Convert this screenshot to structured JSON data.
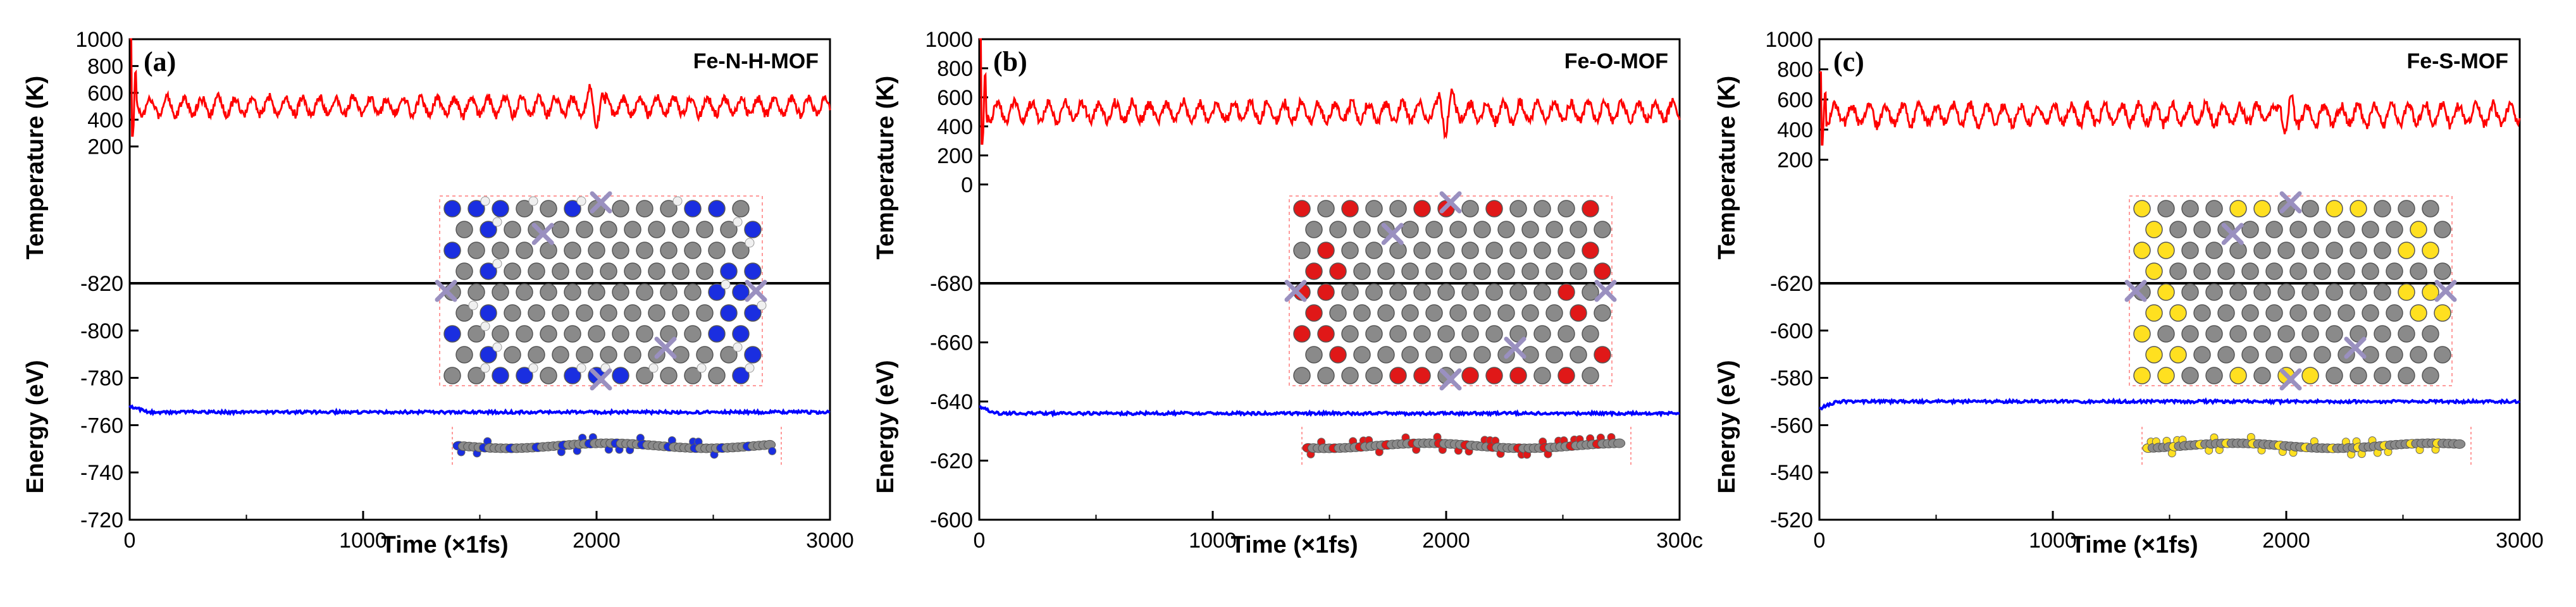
{
  "figure": {
    "x_label": "Time (×1fs)",
    "x_ticks": [
      "0",
      "1000",
      "2000",
      "3000"
    ],
    "x_ticks_last_clipped": [
      "0",
      "1000",
      "2000",
      "3000",
      "300с"
    ],
    "colors": {
      "temperature": "#ff0000",
      "energy": "#0000ff",
      "divider": "#000000",
      "carbon": "#8a8a8a",
      "iron": "#9a90c0",
      "nitrogen": "#1a2ee0",
      "hydrogen": "#f0f0f0",
      "oxygen": "#e01818",
      "sulfur": "#ffe020"
    }
  },
  "chart_data": [
    {
      "type": "line",
      "panel": "(a)",
      "material": "Fe-N-H-MOF",
      "xlabel": "Time (×1fs)",
      "xlim": [
        0,
        3000
      ],
      "x_ticks": [
        "0",
        "1000",
        "2000",
        "3000"
      ],
      "temperature": {
        "ylabel": "Temperature (K)",
        "ylim": [
          -820,
          1000
        ],
        "y_ticks": [
          "1000",
          "800",
          "600",
          "400",
          "200",
          "-820"
        ],
        "mean": 500,
        "amplitude": 70,
        "initial_peak": 1000,
        "initial_min": 280
      },
      "energy": {
        "ylabel": "Energy (eV)",
        "ylim": [
          -720,
          -820
        ],
        "y_ticks": [
          "-800",
          "-780",
          "-760",
          "-740",
          "-720"
        ],
        "mean": -765.5,
        "initial": -768
      },
      "structure_elements": [
        "carbon",
        "iron",
        "nitrogen",
        "hydrogen"
      ]
    },
    {
      "type": "line",
      "panel": "(b)",
      "material": "Fe-O-MOF",
      "xlabel": "Time (×1fs)",
      "xlim": [
        0,
        3000
      ],
      "x_ticks": [
        "0",
        "1000",
        "2000",
        "300с"
      ],
      "temperature": {
        "ylabel": "Temperature (K)",
        "ylim": [
          -680,
          1000
        ],
        "y_ticks": [
          "1000",
          "800",
          "600",
          "400",
          "200",
          "0",
          "-680"
        ],
        "mean": 500,
        "amplitude": 70,
        "initial_peak": 1000,
        "initial_min": 280
      },
      "energy": {
        "ylabel": "Energy (eV)",
        "ylim": [
          -600,
          -680
        ],
        "y_ticks": [
          "-660",
          "-640",
          "-620",
          "-600"
        ],
        "mean": -636,
        "initial": -638
      },
      "structure_elements": [
        "carbon",
        "iron",
        "oxygen"
      ]
    },
    {
      "type": "line",
      "panel": "(c)",
      "material": "Fe-S-MOF",
      "xlabel": "Time (×1fs)",
      "xlim": [
        0,
        3000
      ],
      "x_ticks": [
        "0",
        "1000",
        "2000",
        "3000"
      ],
      "temperature": {
        "ylabel": "Temperature (K)",
        "ylim": [
          -620,
          1000
        ],
        "y_ticks": [
          "1000",
          "800",
          "600",
          "400",
          "200",
          "-620"
        ],
        "mean": 500,
        "amplitude": 70,
        "initial_peak": 780,
        "initial_min": 300
      },
      "energy": {
        "ylabel": "Energy (eV)",
        "ylim": [
          -520,
          -620
        ],
        "y_ticks": [
          "-600",
          "-580",
          "-560",
          "-540",
          "-520"
        ],
        "mean": -570,
        "initial": -567
      },
      "structure_elements": [
        "carbon",
        "iron",
        "sulfur"
      ]
    }
  ]
}
